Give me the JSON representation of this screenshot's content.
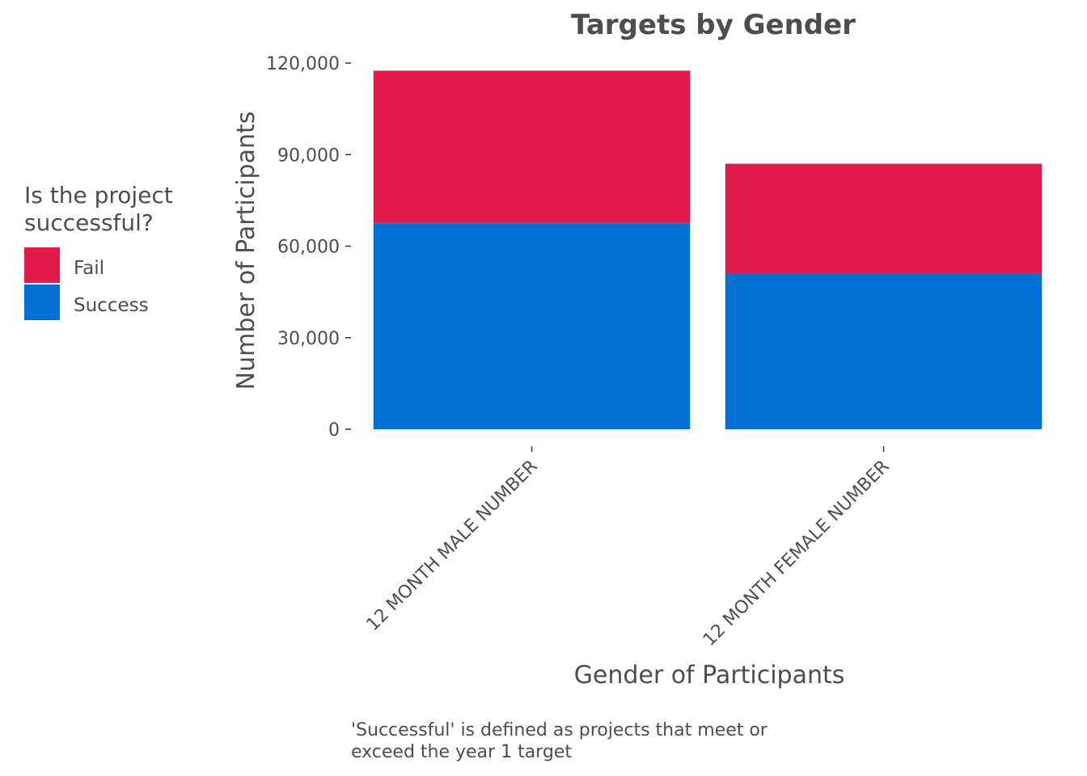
{
  "chart_data": {
    "type": "bar",
    "stacked": true,
    "title": "Targets by Gender",
    "xlabel": "Gender of Participants",
    "ylabel": "Number of Participants",
    "categories": [
      "12 MONTH MALE NUMBER",
      "12 MONTH FEMALE NUMBER"
    ],
    "series": [
      {
        "name": "Success",
        "values": [
          67500,
          51000
        ],
        "color": "#0070d4"
      },
      {
        "name": "Fail",
        "values": [
          50000,
          36000
        ],
        "color": "#e31b4b"
      }
    ],
    "ylim": [
      0,
      120000
    ],
    "yticks": [
      0,
      30000,
      60000,
      90000,
      120000
    ],
    "ytick_labels": [
      "0",
      "30,000",
      "60,000",
      "90,000",
      "120,000"
    ],
    "grid": false,
    "legend": {
      "title": "Is the project successful?",
      "position": "left",
      "entries": [
        {
          "label": "Fail",
          "color": "#e31b4b"
        },
        {
          "label": "Success",
          "color": "#0070d4"
        }
      ]
    },
    "caption": "'Successful' is defined as projects that meet or exceed the year 1 target"
  }
}
